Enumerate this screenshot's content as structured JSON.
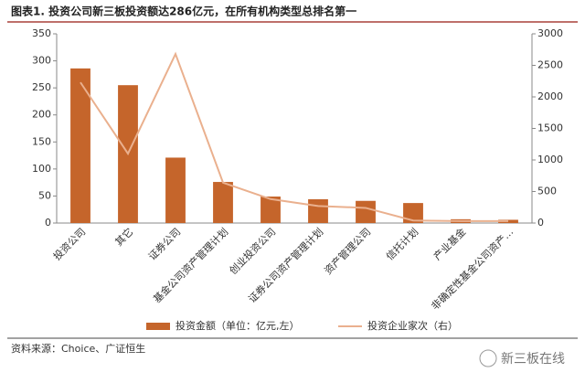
{
  "chart_data": {
    "type": "bar",
    "title": "图表1. 投资公司新三板投资额达286亿元，在所有机构类型总排名第一",
    "categories": [
      "投资公司",
      "其它",
      "证券公司",
      "基金公司资产管理计划",
      "创业投资公司",
      "证券公司资产管理计划",
      "资产管理公司",
      "信托计划",
      "产业基金",
      "非确定性基金公司资产…"
    ],
    "series": [
      {
        "name": "投资金额（单位：亿元,左）",
        "type": "bar",
        "color": "#c5652b",
        "values": [
          286,
          255,
          121,
          76,
          49,
          44,
          41,
          37,
          7,
          6
        ]
      },
      {
        "name": "投资企业家次（右）",
        "type": "line",
        "axis": "y2",
        "color": "#eab08e",
        "values": [
          2230,
          1100,
          2680,
          640,
          380,
          270,
          240,
          40,
          30,
          30
        ]
      }
    ],
    "ylim": [
      0,
      350
    ],
    "yticks": [
      0,
      50,
      100,
      150,
      200,
      250,
      300,
      350
    ],
    "y2lim": [
      0,
      3000
    ],
    "y2ticks": [
      0,
      500,
      1000,
      1500,
      2000,
      2500,
      3000
    ],
    "legend": "bottom",
    "source": "资料来源：Choice、广证恒生",
    "watermark": "新三板在线"
  }
}
